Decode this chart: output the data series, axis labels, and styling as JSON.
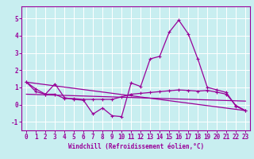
{
  "xlabel": "Windchill (Refroidissement éolien,°C)",
  "xlim": [
    -0.5,
    23.5
  ],
  "ylim": [
    -1.5,
    5.7
  ],
  "yticks": [
    -1,
    0,
    1,
    2,
    3,
    4,
    5
  ],
  "xticks": [
    0,
    1,
    2,
    3,
    4,
    5,
    6,
    7,
    8,
    9,
    10,
    11,
    12,
    13,
    14,
    15,
    16,
    17,
    18,
    19,
    20,
    21,
    22,
    23
  ],
  "bg_color": "#c8eef0",
  "line_color": "#990099",
  "grid_color": "#ffffff",
  "lines": [
    {
      "x": [
        0,
        1,
        2,
        3,
        4,
        5,
        6,
        7,
        8,
        9,
        10,
        11,
        12,
        13,
        14,
        15,
        16,
        17,
        18,
        19,
        20,
        21,
        22,
        23
      ],
      "y": [
        1.3,
        0.9,
        0.6,
        1.2,
        0.4,
        0.3,
        0.25,
        -0.55,
        -0.2,
        -0.65,
        -0.7,
        1.25,
        1.05,
        2.65,
        2.8,
        4.2,
        4.9,
        4.1,
        2.65,
        1.0,
        0.85,
        0.7,
        -0.1,
        -0.35
      ],
      "marker": true
    },
    {
      "x": [
        0,
        1,
        2,
        3,
        4,
        5,
        6,
        7,
        8,
        9,
        10,
        11,
        12,
        13,
        14,
        15,
        16,
        17,
        18,
        19,
        20,
        21,
        22,
        23
      ],
      "y": [
        1.3,
        0.75,
        0.6,
        0.6,
        0.35,
        0.35,
        0.3,
        0.3,
        0.3,
        0.3,
        0.45,
        0.6,
        0.65,
        0.7,
        0.75,
        0.8,
        0.85,
        0.82,
        0.78,
        0.82,
        0.72,
        0.6,
        -0.05,
        -0.35
      ],
      "marker": true
    },
    {
      "x": [
        0,
        23
      ],
      "y": [
        1.3,
        -0.35
      ],
      "marker": false
    },
    {
      "x": [
        0,
        23
      ],
      "y": [
        0.6,
        0.2
      ],
      "marker": false
    }
  ],
  "xlabel_fontsize": 5.5,
  "tick_fontsize": 5.5,
  "linewidth": 0.9,
  "markersize": 3.0
}
